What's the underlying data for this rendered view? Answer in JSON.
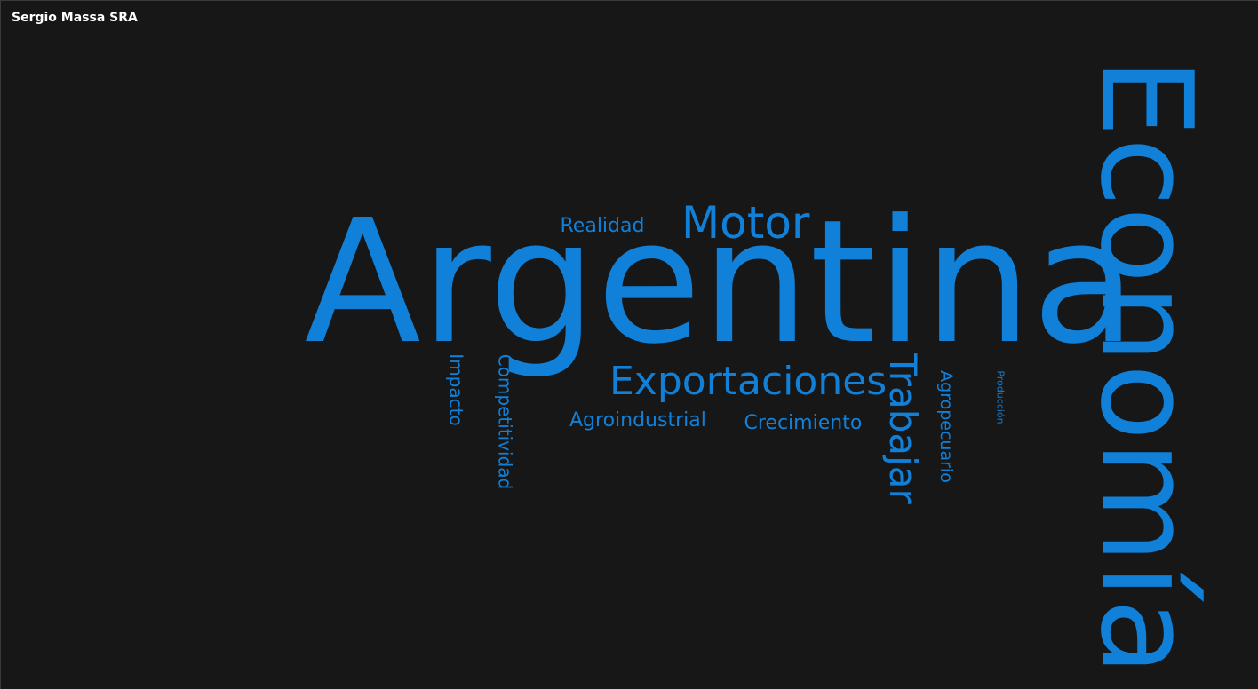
{
  "header": {
    "title": "Sergio Massa SRA"
  },
  "chart_data": {
    "type": "wordcloud",
    "color": "#1180d8",
    "background": "#171717",
    "words": [
      {
        "text": "Argentina",
        "weight": 100,
        "orientation": "horizontal"
      },
      {
        "text": "Economía",
        "weight": 95,
        "orientation": "vertical"
      },
      {
        "text": "Motor",
        "weight": 33,
        "orientation": "horizontal"
      },
      {
        "text": "Exportaciones",
        "weight": 30,
        "orientation": "horizontal"
      },
      {
        "text": "Trabajar",
        "weight": 30,
        "orientation": "vertical"
      },
      {
        "text": "Realidad",
        "weight": 17,
        "orientation": "horizontal"
      },
      {
        "text": "Agroindustrial",
        "weight": 17,
        "orientation": "horizontal"
      },
      {
        "text": "Crecimiento",
        "weight": 17,
        "orientation": "horizontal"
      },
      {
        "text": "Competitividad",
        "weight": 16,
        "orientation": "vertical"
      },
      {
        "text": "Impacto",
        "weight": 16,
        "orientation": "vertical"
      },
      {
        "text": "Agropecuario",
        "weight": 15,
        "orientation": "vertical"
      },
      {
        "text": "Producción",
        "weight": 9,
        "orientation": "vertical"
      }
    ]
  }
}
